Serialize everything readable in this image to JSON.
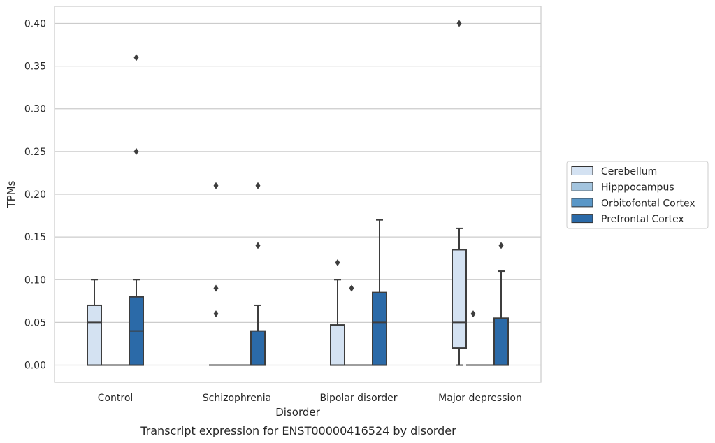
{
  "chart_data": {
    "type": "box",
    "xlabel": "Disorder",
    "ylabel": "TPMs",
    "caption": "Transcript expression for ENST00000416524 by disorder",
    "ylim": [
      -0.02,
      0.42
    ],
    "yticks": [
      0.0,
      0.05,
      0.1,
      0.15,
      0.2,
      0.25,
      0.3,
      0.35,
      0.4
    ],
    "ytick_labels": [
      "0.00",
      "0.05",
      "0.10",
      "0.15",
      "0.20",
      "0.25",
      "0.30",
      "0.35",
      "0.40"
    ],
    "grid": "horizontal",
    "legend_position": "right",
    "categories": [
      "Control",
      "Schizophrenia",
      "Bipolar disorder",
      "Major depression"
    ],
    "series": [
      {
        "name": "Cerebellum",
        "color": "#d4e2f2",
        "boxes": [
          {
            "q1": 0.0,
            "median": 0.05,
            "q3": 0.07,
            "whisker_low": 0.0,
            "whisker_high": 0.1,
            "outliers": []
          },
          {
            "q1": 0.0,
            "median": 0.0,
            "q3": 0.0,
            "whisker_low": 0.0,
            "whisker_high": 0.0,
            "outliers": [
              0.06,
              0.09,
              0.21
            ]
          },
          {
            "q1": 0.0,
            "median": 0.0,
            "q3": 0.047,
            "whisker_low": 0.0,
            "whisker_high": 0.1,
            "outliers": [
              0.12
            ]
          },
          {
            "q1": 0.02,
            "median": 0.05,
            "q3": 0.135,
            "whisker_low": 0.0,
            "whisker_high": 0.16,
            "outliers": [
              0.4
            ]
          }
        ]
      },
      {
        "name": "Hipppocampus",
        "color": "#a3c4de",
        "boxes": [
          {
            "q1": 0.0,
            "median": 0.0,
            "q3": 0.0,
            "whisker_low": 0.0,
            "whisker_high": 0.0,
            "outliers": []
          },
          {
            "q1": 0.0,
            "median": 0.0,
            "q3": 0.0,
            "whisker_low": 0.0,
            "whisker_high": 0.0,
            "outliers": []
          },
          {
            "q1": 0.0,
            "median": 0.0,
            "q3": 0.0,
            "whisker_low": 0.0,
            "whisker_high": 0.0,
            "outliers": [
              0.09
            ]
          },
          {
            "q1": 0.0,
            "median": 0.0,
            "q3": 0.0,
            "whisker_low": 0.0,
            "whisker_high": 0.0,
            "outliers": [
              0.06
            ]
          }
        ]
      },
      {
        "name": "Orbitofontal Cortex",
        "color": "#5a97c7",
        "boxes": [
          {
            "q1": 0.0,
            "median": 0.0,
            "q3": 0.0,
            "whisker_low": 0.0,
            "whisker_high": 0.0,
            "outliers": []
          },
          {
            "q1": 0.0,
            "median": 0.0,
            "q3": 0.0,
            "whisker_low": 0.0,
            "whisker_high": 0.0,
            "outliers": []
          },
          {
            "q1": 0.0,
            "median": 0.0,
            "q3": 0.0,
            "whisker_low": 0.0,
            "whisker_high": 0.0,
            "outliers": []
          },
          {
            "q1": 0.0,
            "median": 0.0,
            "q3": 0.0,
            "whisker_low": 0.0,
            "whisker_high": 0.0,
            "outliers": []
          }
        ]
      },
      {
        "name": "Prefrontal Cortex",
        "color": "#2b6aa8",
        "boxes": [
          {
            "q1": 0.0,
            "median": 0.04,
            "q3": 0.08,
            "whisker_low": 0.0,
            "whisker_high": 0.1,
            "outliers": [
              0.25,
              0.36
            ]
          },
          {
            "q1": 0.0,
            "median": 0.0,
            "q3": 0.04,
            "whisker_low": 0.0,
            "whisker_high": 0.07,
            "outliers": [
              0.14,
              0.21
            ]
          },
          {
            "q1": 0.0,
            "median": 0.05,
            "q3": 0.085,
            "whisker_low": 0.0,
            "whisker_high": 0.17,
            "outliers": []
          },
          {
            "q1": 0.0,
            "median": 0.0,
            "q3": 0.055,
            "whisker_low": 0.0,
            "whisker_high": 0.11,
            "outliers": [
              0.14
            ]
          }
        ]
      }
    ]
  }
}
